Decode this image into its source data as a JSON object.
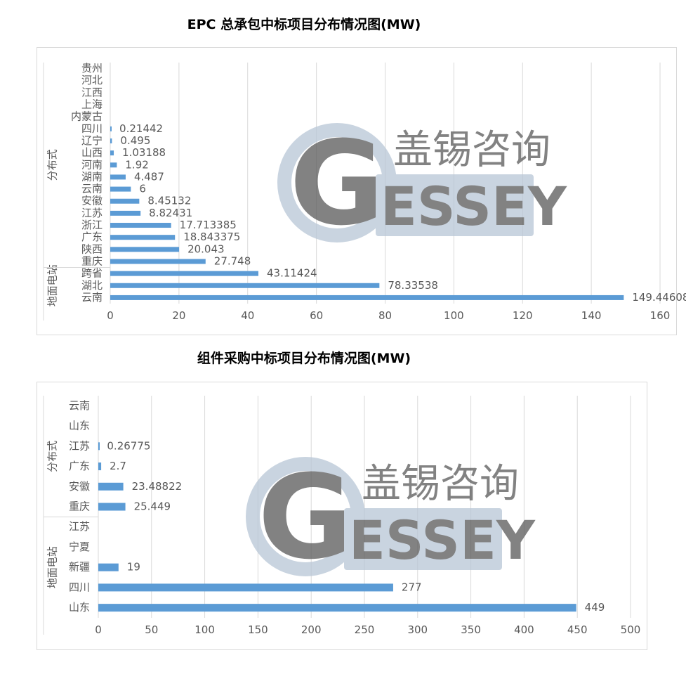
{
  "watermark": {
    "name_cn": "盖锡咨询",
    "letter_g": "G",
    "name_en": "ESSEY",
    "color": "#b8c6d6"
  },
  "colors": {
    "bar": "#5b9bd5",
    "grid": "#d9d9d9",
    "text": "#595959"
  },
  "chart_data": [
    {
      "type": "bar",
      "orientation": "horizontal",
      "title": "EPC 总承包中标项目分布情况图(MW)",
      "xlim": [
        0,
        160
      ],
      "xticks": [
        0,
        20,
        40,
        60,
        80,
        100,
        120,
        140,
        160
      ],
      "grid": true,
      "groups": [
        {
          "label": "地面电站",
          "categories": [
            "云南",
            "湖北",
            "跨省"
          ],
          "values": [
            149.44608,
            78.33538,
            43.11424
          ],
          "value_labels": [
            "149.44608",
            "78.33538",
            "43.11424"
          ]
        },
        {
          "label": "分布式",
          "categories": [
            "重庆",
            "陕西",
            "广东",
            "浙江",
            "江苏",
            "安徽",
            "云南",
            "湖南",
            "河南",
            "山西",
            "辽宁",
            "四川",
            "内蒙古",
            "上海",
            "江西",
            "河北",
            "贵州"
          ],
          "values": [
            27.748,
            20.043,
            18.843375,
            17.713385,
            8.82431,
            8.45132,
            6,
            4.487,
            1.92,
            1.03188,
            0.495,
            0.21442,
            null,
            null,
            null,
            null,
            null
          ],
          "value_labels": [
            "27.748",
            "20.043",
            "18.843375",
            "17.713385",
            "8.82431",
            "8.45132",
            "6",
            "4.487",
            "1.92",
            "1.03188",
            "0.495",
            "0.21442",
            "",
            "",
            "",
            "",
            ""
          ]
        }
      ]
    },
    {
      "type": "bar",
      "orientation": "horizontal",
      "title": "组件采购中标项目分布情况图(MW)",
      "xlim": [
        0,
        500
      ],
      "xticks": [
        0,
        50,
        100,
        150,
        200,
        250,
        300,
        350,
        400,
        450,
        500
      ],
      "grid": true,
      "groups": [
        {
          "label": "地面电站",
          "categories": [
            "山东",
            "四川",
            "新疆",
            "宁夏",
            "江苏"
          ],
          "values": [
            449,
            277,
            19,
            null,
            null
          ],
          "value_labels": [
            "449",
            "277",
            "19",
            "",
            ""
          ]
        },
        {
          "label": "分布式",
          "categories": [
            "重庆",
            "安徽",
            "广东",
            "江苏",
            "山东",
            "云南"
          ],
          "values": [
            25.449,
            23.48822,
            2.7,
            0.26775,
            null,
            null
          ],
          "value_labels": [
            "25.449",
            "23.48822",
            "2.7",
            "0.26775",
            "",
            ""
          ]
        }
      ]
    }
  ]
}
